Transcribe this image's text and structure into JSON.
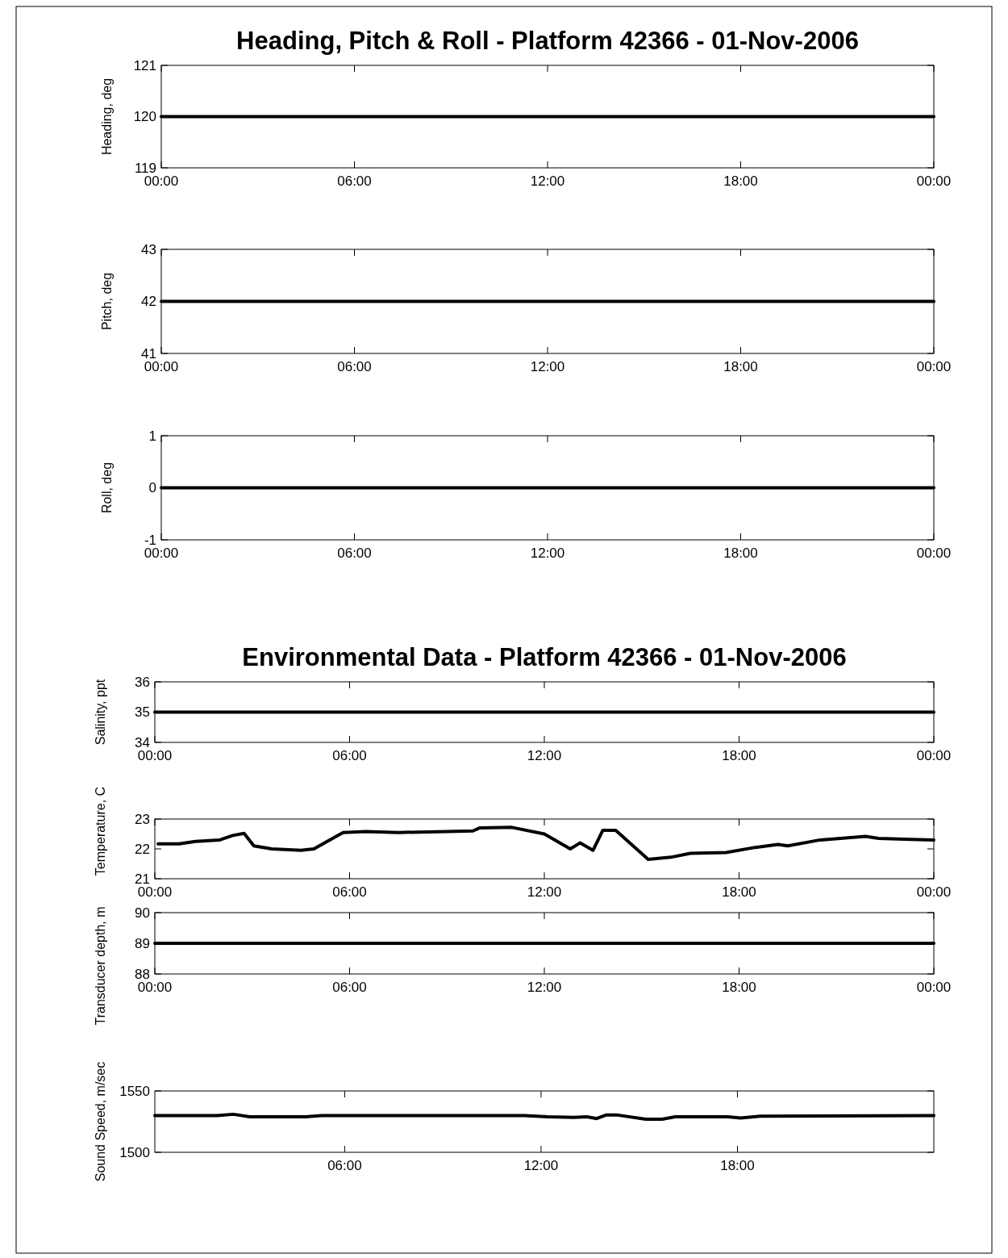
{
  "chart_data": [
    {
      "type": "line",
      "title": "Heading, Pitch & Roll - Platform 42366 - 01-Nov-2006",
      "ylabel": "Heading, deg",
      "xlim": [
        0,
        24
      ],
      "xticks": [
        {
          "value": 0,
          "label": "00:00"
        },
        {
          "value": 6,
          "label": "06:00"
        },
        {
          "value": 12,
          "label": "12:00"
        },
        {
          "value": 18,
          "label": "18:00"
        },
        {
          "value": 24,
          "label": "00:00"
        }
      ],
      "ylim": [
        119,
        121
      ],
      "yticks": [
        119,
        120,
        121
      ],
      "grid": false,
      "series": [
        {
          "color": "#000000",
          "x": [
            0,
            24
          ],
          "values": [
            120,
            120
          ]
        }
      ]
    },
    {
      "type": "line",
      "ylabel": "Pitch, deg",
      "xlim": [
        0,
        24
      ],
      "xticks": [
        {
          "value": 0,
          "label": "00:00"
        },
        {
          "value": 6,
          "label": "06:00"
        },
        {
          "value": 12,
          "label": "12:00"
        },
        {
          "value": 18,
          "label": "18:00"
        },
        {
          "value": 24,
          "label": "00:00"
        }
      ],
      "ylim": [
        41,
        43
      ],
      "yticks": [
        41,
        42,
        43
      ],
      "grid": false,
      "series": [
        {
          "color": "#000000",
          "x": [
            0,
            24
          ],
          "values": [
            42,
            42
          ]
        }
      ]
    },
    {
      "type": "line",
      "ylabel": "Roll, deg",
      "xlim": [
        0,
        24
      ],
      "xticks": [
        {
          "value": 0,
          "label": "00:00"
        },
        {
          "value": 6,
          "label": "06:00"
        },
        {
          "value": 12,
          "label": "12:00"
        },
        {
          "value": 18,
          "label": "18:00"
        },
        {
          "value": 24,
          "label": "00:00"
        }
      ],
      "ylim": [
        -1,
        1
      ],
      "yticks": [
        -1,
        0,
        1
      ],
      "grid": false,
      "series": [
        {
          "color": "#000000",
          "x": [
            0,
            24
          ],
          "values": [
            0,
            0
          ]
        }
      ]
    },
    {
      "type": "line",
      "title": "Environmental Data - Platform 42366 - 01-Nov-2006",
      "ylabel": "Salinity, ppt",
      "xlim": [
        0,
        24
      ],
      "xticks": [
        {
          "value": 0,
          "label": "00:00"
        },
        {
          "value": 6,
          "label": "06:00"
        },
        {
          "value": 12,
          "label": "12:00"
        },
        {
          "value": 18,
          "label": "18:00"
        },
        {
          "value": 24,
          "label": "00:00"
        }
      ],
      "ylim": [
        34,
        36
      ],
      "yticks": [
        34,
        35,
        36
      ],
      "grid": false,
      "series": [
        {
          "color": "#000000",
          "x": [
            0,
            24
          ],
          "values": [
            35,
            35
          ]
        }
      ]
    },
    {
      "type": "line",
      "ylabel": "Temperature, C",
      "xlim": [
        0,
        24
      ],
      "xticks": [
        {
          "value": 0,
          "label": "00:00"
        },
        {
          "value": 6,
          "label": "06:00"
        },
        {
          "value": 12,
          "label": "12:00"
        },
        {
          "value": 18,
          "label": "18:00"
        },
        {
          "value": 24,
          "label": "00:00"
        }
      ],
      "ylim": [
        21,
        23
      ],
      "yticks": [
        21,
        22,
        23
      ],
      "grid": false,
      "series": [
        {
          "color": "#000000",
          "x": [
            0.1,
            0.75,
            1.25,
            2,
            2.4,
            2.75,
            3.05,
            3.6,
            4.5,
            4.9,
            5.8,
            6.5,
            7.5,
            9,
            9.8,
            10,
            11,
            12,
            12.8,
            13.1,
            13.5,
            13.8,
            14.2,
            15.2,
            15.9,
            16.5,
            17.6,
            18.5,
            19.2,
            19.5,
            20.5,
            21.9,
            22.3,
            23.3,
            24
          ],
          "values": [
            22.17,
            22.17,
            22.25,
            22.3,
            22.45,
            22.52,
            22.1,
            22.0,
            21.95,
            22.0,
            22.55,
            22.58,
            22.55,
            22.58,
            22.6,
            22.7,
            22.72,
            22.5,
            22.0,
            22.2,
            21.95,
            22.62,
            22.62,
            21.65,
            21.72,
            21.85,
            21.88,
            22.05,
            22.15,
            22.1,
            22.3,
            22.42,
            22.35,
            22.32,
            22.3
          ]
        }
      ]
    },
    {
      "type": "line",
      "ylabel": "Transducer depth, m",
      "xlim": [
        0,
        24
      ],
      "xticks": [
        {
          "value": 0,
          "label": "00:00"
        },
        {
          "value": 6,
          "label": "06:00"
        },
        {
          "value": 12,
          "label": "12:00"
        },
        {
          "value": 18,
          "label": "18:00"
        },
        {
          "value": 24,
          "label": "00:00"
        }
      ],
      "ylim": [
        88,
        90
      ],
      "yticks": [
        88,
        89,
        90
      ],
      "grid": false,
      "series": [
        {
          "color": "#000000",
          "x": [
            0,
            24
          ],
          "values": [
            89,
            89
          ]
        }
      ]
    },
    {
      "type": "line",
      "ylabel": "Sound Speed, m/sec",
      "xlim": [
        0.2,
        24
      ],
      "xticks": [
        {
          "value": 6,
          "label": "06:00"
        },
        {
          "value": 12,
          "label": "12:00"
        },
        {
          "value": 18,
          "label": "18:00"
        }
      ],
      "ylim": [
        1500,
        1550
      ],
      "yticks": [
        1500,
        1550
      ],
      "grid": false,
      "series": [
        {
          "color": "#000000",
          "x": [
            0.2,
            2.1,
            2.6,
            3.1,
            4.8,
            5.3,
            11.5,
            12.2,
            13,
            13.4,
            13.7,
            14,
            14.3,
            15.2,
            15.7,
            16.1,
            17.7,
            18.1,
            18.7,
            24
          ],
          "values": [
            1530,
            1530,
            1531,
            1529,
            1529,
            1530,
            1530,
            1529,
            1528.5,
            1529,
            1527.5,
            1530.5,
            1530.5,
            1527,
            1527,
            1529,
            1529,
            1528,
            1529.5,
            1530
          ]
        }
      ]
    }
  ]
}
